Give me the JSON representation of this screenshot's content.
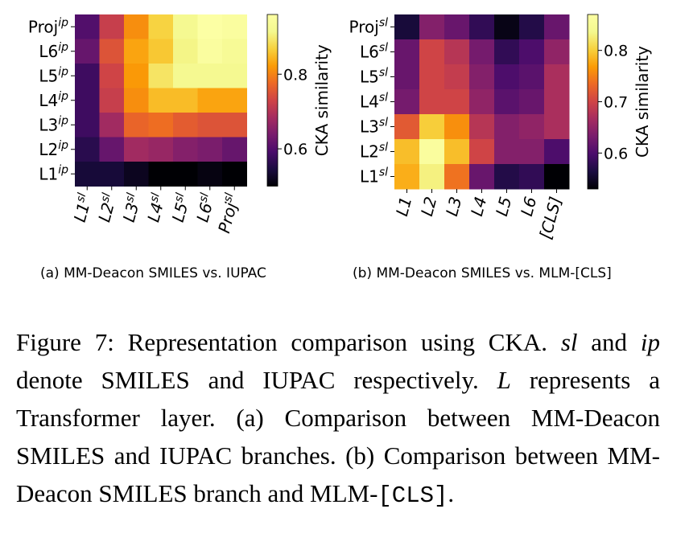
{
  "chart_data": [
    {
      "type": "heatmap",
      "panel_caption": "(a) MM-Deacon SMILES vs. IUPAC",
      "y_categories": [
        {
          "base": "Proj",
          "sup": "ip"
        },
        {
          "base": "L6",
          "sup": "ip"
        },
        {
          "base": "L5",
          "sup": "ip"
        },
        {
          "base": "L4",
          "sup": "ip"
        },
        {
          "base": "L3",
          "sup": "ip"
        },
        {
          "base": "L2",
          "sup": "ip"
        },
        {
          "base": "L1",
          "sup": "ip"
        }
      ],
      "x_categories": [
        {
          "base": "L1",
          "sup": "sl"
        },
        {
          "base": "L2",
          "sup": "sl"
        },
        {
          "base": "L3",
          "sup": "sl"
        },
        {
          "base": "L4",
          "sup": "sl"
        },
        {
          "base": "L5",
          "sup": "sl"
        },
        {
          "base": "L6",
          "sup": "sl"
        },
        {
          "base": "Proj",
          "sup": "sl"
        }
      ],
      "values": [
        [
          0.6,
          0.72,
          0.81,
          0.87,
          0.92,
          0.96,
          0.95
        ],
        [
          0.62,
          0.75,
          0.83,
          0.86,
          0.91,
          0.95,
          0.93
        ],
        [
          0.58,
          0.73,
          0.82,
          0.89,
          0.92,
          0.92,
          0.92
        ],
        [
          0.58,
          0.72,
          0.81,
          0.85,
          0.85,
          0.83,
          0.83
        ],
        [
          0.58,
          0.68,
          0.77,
          0.78,
          0.76,
          0.75,
          0.75
        ],
        [
          0.56,
          0.62,
          0.68,
          0.67,
          0.65,
          0.64,
          0.62
        ],
        [
          0.54,
          0.54,
          0.52,
          0.5,
          0.5,
          0.51,
          0.5
        ]
      ],
      "colorbar": {
        "label": "CKA similarity",
        "ticks": [
          0.6,
          0.8
        ],
        "range": [
          0.5,
          0.96
        ]
      }
    },
    {
      "type": "heatmap",
      "panel_caption": "(b) MM-Deacon SMILES vs. MLM-[CLS]",
      "y_categories": [
        {
          "base": "Proj",
          "sup": "sl"
        },
        {
          "base": "L6",
          "sup": "sl"
        },
        {
          "base": "L5",
          "sup": "sl"
        },
        {
          "base": "L4",
          "sup": "sl"
        },
        {
          "base": "L3",
          "sup": "sl"
        },
        {
          "base": "L2",
          "sup": "sl"
        },
        {
          "base": "L1",
          "sup": "sl"
        }
      ],
      "x_categories": [
        {
          "base": "L1",
          "sup": ""
        },
        {
          "base": "L2",
          "sup": ""
        },
        {
          "base": "L3",
          "sup": ""
        },
        {
          "base": "L4",
          "sup": ""
        },
        {
          "base": "L5",
          "sup": ""
        },
        {
          "base": "L6",
          "sup": ""
        },
        {
          "base": "[CLS]",
          "sup": ""
        }
      ],
      "values": [
        [
          0.56,
          0.64,
          0.62,
          0.58,
          0.54,
          0.57,
          0.62
        ],
        [
          0.62,
          0.7,
          0.68,
          0.63,
          0.58,
          0.6,
          0.65
        ],
        [
          0.62,
          0.7,
          0.69,
          0.64,
          0.6,
          0.61,
          0.67
        ],
        [
          0.63,
          0.7,
          0.7,
          0.65,
          0.61,
          0.62,
          0.67
        ],
        [
          0.72,
          0.8,
          0.76,
          0.68,
          0.64,
          0.65,
          0.67
        ],
        [
          0.79,
          0.86,
          0.79,
          0.7,
          0.64,
          0.64,
          0.6
        ],
        [
          0.78,
          0.83,
          0.74,
          0.62,
          0.57,
          0.58,
          0.52
        ]
      ],
      "colorbar": {
        "label": "CKA similarity",
        "ticks": [
          0.6,
          0.7,
          0.8
        ],
        "range": [
          0.53,
          0.87
        ]
      }
    }
  ],
  "caption": {
    "fig_label": "Figure 7:",
    "text1": " Representation comparison using CKA. ",
    "sl": "sl",
    "text2": " and ",
    "ip": "ip",
    "text3": " denote SMILES and IUPAC respectively. ",
    "L": "L",
    "text4": " represents a Transformer layer. (a) Comparison between MM-Deacon SMILES and IUPAC branches. (b) Comparison between MM-Deacon SMILES branch and MLM-",
    "cls": "[CLS]",
    "text5": "."
  }
}
